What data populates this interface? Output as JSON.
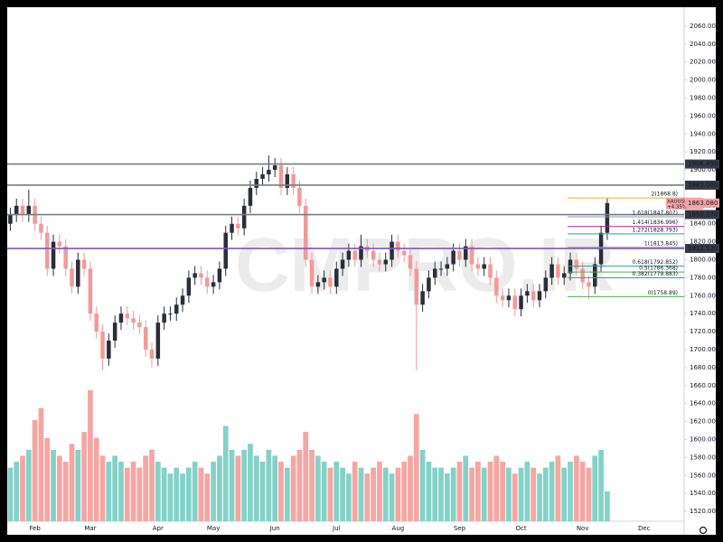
{
  "chart_data": {
    "type": "candlestick",
    "watermark": "CMPRO.IR",
    "categories": [
      null,
      null,
      null,
      null,
      "Feb",
      null,
      null,
      null,
      null,
      null,
      null,
      null,
      null,
      "Mar",
      null,
      null,
      null,
      null,
      null,
      null,
      null,
      null,
      null,
      null,
      "Apr",
      null,
      null,
      null,
      null,
      null,
      null,
      null,
      null,
      "May",
      null,
      null,
      null,
      null,
      null,
      null,
      null,
      null,
      null,
      "Jun",
      null,
      null,
      null,
      null,
      null,
      null,
      null,
      null,
      null,
      "Jul",
      null,
      null,
      null,
      null,
      null,
      null,
      null,
      null,
      null,
      "Aug",
      null,
      null,
      null,
      null,
      null,
      null,
      null,
      null,
      null,
      "Sep",
      null,
      null,
      null,
      null,
      null,
      null,
      null,
      null,
      null,
      "Oct",
      null,
      null,
      null,
      null,
      null,
      null,
      null,
      null,
      null,
      "Nov",
      null,
      null,
      null,
      null,
      null,
      null,
      null,
      null,
      null,
      "Dec",
      null,
      null,
      null,
      null,
      null,
      null
    ],
    "open": [
      1840,
      1850,
      1860,
      1850,
      1860,
      1840,
      1830,
      1790,
      1820,
      1815,
      1790,
      1770,
      1800,
      1790,
      1740,
      1720,
      1690,
      1710,
      1730,
      1740,
      1735,
      1730,
      1725,
      1700,
      1690,
      1730,
      1740,
      1740,
      1750,
      1760,
      1780,
      1785,
      1780,
      1770,
      1775,
      1790,
      1830,
      1840,
      1835,
      1860,
      1880,
      1890,
      1895,
      1900,
      1905,
      1880,
      1895,
      1880,
      1860,
      1800,
      1770,
      1775,
      1780,
      1770,
      1790,
      1800,
      1810,
      1800,
      1815,
      1810,
      1800,
      1795,
      1800,
      1820,
      1810,
      1805,
      1790,
      1750,
      1765,
      1780,
      1790,
      1790,
      1795,
      1810,
      1800,
      1815,
      1795,
      1790,
      1795,
      1780,
      1760,
      1755,
      1760,
      1745,
      1760,
      1765,
      1755,
      1765,
      1780,
      1795,
      1780,
      1785,
      1800,
      1790,
      1775,
      1770,
      1795,
      1830,
      null,
      null,
      null,
      null,
      null,
      null,
      null,
      null,
      null,
      null,
      null,
      null
    ],
    "high": [
      1858,
      1868,
      1868,
      1878,
      1868,
      1848,
      1838,
      1828,
      1828,
      1823,
      1798,
      1808,
      1808,
      1798,
      1748,
      1728,
      1718,
      1738,
      1748,
      1748,
      1743,
      1738,
      1733,
      1708,
      1738,
      1748,
      1748,
      1758,
      1768,
      1788,
      1793,
      1793,
      1788,
      1783,
      1798,
      1838,
      1848,
      1848,
      1868,
      1888,
      1898,
      1903,
      1916,
      1913,
      1913,
      1903,
      1903,
      1888,
      1868,
      1808,
      1783,
      1788,
      1788,
      1798,
      1808,
      1818,
      1818,
      1828,
      1823,
      1818,
      1808,
      1808,
      1828,
      1828,
      1818,
      1813,
      1798,
      1773,
      1788,
      1798,
      1798,
      1803,
      1818,
      1818,
      1823,
      1823,
      1803,
      1803,
      1803,
      1788,
      1768,
      1768,
      1768,
      1768,
      1773,
      1773,
      1773,
      1788,
      1803,
      1803,
      1793,
      1808,
      1808,
      1798,
      1783,
      1803,
      1838,
      1868,
      null,
      null,
      null,
      null,
      null,
      null,
      null,
      null,
      null,
      null,
      null,
      null
    ],
    "low": [
      1832,
      1842,
      1842,
      1842,
      1832,
      1822,
      1782,
      1782,
      1807,
      1782,
      1762,
      1762,
      1782,
      1732,
      1712,
      1677,
      1682,
      1702,
      1722,
      1727,
      1722,
      1717,
      1692,
      1680,
      1682,
      1722,
      1732,
      1732,
      1742,
      1752,
      1772,
      1772,
      1762,
      1762,
      1767,
      1782,
      1822,
      1827,
      1827,
      1852,
      1872,
      1882,
      1887,
      1892,
      1872,
      1872,
      1872,
      1852,
      1792,
      1762,
      1762,
      1767,
      1762,
      1762,
      1782,
      1792,
      1792,
      1792,
      1802,
      1792,
      1787,
      1787,
      1792,
      1802,
      1797,
      1782,
      1677,
      1742,
      1757,
      1772,
      1782,
      1782,
      1787,
      1792,
      1792,
      1787,
      1782,
      1782,
      1772,
      1752,
      1747,
      1747,
      1737,
      1737,
      1752,
      1747,
      1747,
      1757,
      1772,
      1772,
      1772,
      1777,
      1782,
      1767,
      1756,
      1762,
      1787,
      1822,
      null,
      null,
      null,
      null,
      null,
      null,
      null,
      null,
      null,
      null,
      null,
      null
    ],
    "close": [
      1850,
      1860,
      1850,
      1860,
      1840,
      1830,
      1790,
      1820,
      1815,
      1790,
      1770,
      1800,
      1790,
      1740,
      1720,
      1690,
      1710,
      1730,
      1740,
      1735,
      1730,
      1725,
      1700,
      1690,
      1730,
      1740,
      1740,
      1750,
      1760,
      1780,
      1785,
      1780,
      1770,
      1775,
      1790,
      1830,
      1840,
      1835,
      1860,
      1880,
      1890,
      1895,
      1900,
      1905,
      1880,
      1895,
      1880,
      1860,
      1800,
      1770,
      1775,
      1780,
      1770,
      1790,
      1800,
      1810,
      1800,
      1815,
      1810,
      1800,
      1795,
      1800,
      1820,
      1810,
      1805,
      1790,
      1750,
      1765,
      1780,
      1790,
      1790,
      1795,
      1810,
      1800,
      1815,
      1795,
      1790,
      1795,
      1780,
      1760,
      1755,
      1760,
      1745,
      1760,
      1765,
      1755,
      1765,
      1780,
      1795,
      1780,
      1785,
      1800,
      1790,
      1775,
      1770,
      1795,
      1830,
      1863.08,
      null,
      null,
      null,
      null,
      null,
      null,
      null,
      null,
      null,
      null,
      null,
      null
    ],
    "volume": [
      45,
      50,
      55,
      60,
      85,
      95,
      70,
      60,
      55,
      50,
      65,
      60,
      75,
      110,
      70,
      55,
      50,
      55,
      50,
      45,
      50,
      45,
      55,
      60,
      50,
      45,
      40,
      45,
      40,
      45,
      50,
      45,
      40,
      50,
      55,
      80,
      60,
      55,
      60,
      65,
      55,
      50,
      60,
      55,
      50,
      45,
      55,
      60,
      75,
      60,
      55,
      50,
      45,
      50,
      45,
      40,
      50,
      45,
      40,
      45,
      50,
      45,
      40,
      45,
      50,
      55,
      90,
      60,
      50,
      45,
      45,
      40,
      45,
      50,
      55,
      45,
      50,
      45,
      50,
      55,
      50,
      45,
      40,
      45,
      50,
      45,
      40,
      45,
      50,
      55,
      45,
      50,
      55,
      50,
      45,
      55,
      60,
      25,
      null,
      null,
      null,
      null,
      null,
      null,
      null,
      null,
      null,
      null,
      null,
      null
    ],
    "up_color": "#2a2e39",
    "down_color": "#f19a9a",
    "volume_up_color": "#84d2c7",
    "volume_down_color": "#f5a6a2",
    "ylim": [
      1509,
      2081
    ],
    "yticks": [
      {
        "value": 1520,
        "label": "1520.000"
      },
      {
        "value": 1540,
        "label": "1540.000"
      },
      {
        "value": 1560,
        "label": "1560.000"
      },
      {
        "value": 1580,
        "label": "1580.000"
      },
      {
        "value": 1600,
        "label": "1600.000"
      },
      {
        "value": 1620,
        "label": "1620.000"
      },
      {
        "value": 1640,
        "label": "1640.000"
      },
      {
        "value": 1660,
        "label": "1660.000"
      },
      {
        "value": 1680,
        "label": "1680.000"
      },
      {
        "value": 1700,
        "label": "1700.000"
      },
      {
        "value": 1720,
        "label": "1720.000"
      },
      {
        "value": 1740,
        "label": "1740.000"
      },
      {
        "value": 1760,
        "label": "1760.000"
      },
      {
        "value": 1780,
        "label": "1780.000"
      },
      {
        "value": 1800,
        "label": "1800.000"
      },
      {
        "value": 1820,
        "label": "1820.000"
      },
      {
        "value": 1840,
        "label": "1840.000"
      },
      {
        "value": 1860,
        "label": "1860.000"
      },
      {
        "value": 1880,
        "label": "1880.000"
      },
      {
        "value": 1900,
        "label": "1900.000"
      },
      {
        "value": 1920,
        "label": "1920.000"
      },
      {
        "value": 1940,
        "label": "1940.000"
      },
      {
        "value": 1960,
        "label": "1960.000"
      },
      {
        "value": 1980,
        "label": "1980.000"
      },
      {
        "value": 2000,
        "label": "2000.000"
      },
      {
        "value": 2020,
        "label": "2020.000"
      },
      {
        "value": 2040,
        "label": "2040.000"
      },
      {
        "value": 2060,
        "label": "2060.000"
      }
    ],
    "levels": [
      {
        "value": 1906.49,
        "label": "1906.490",
        "color": "#787b86"
      },
      {
        "value": 1883,
        "label": "1883.000",
        "color": "#787b86"
      },
      {
        "value": 1850.27,
        "label": "1850.270",
        "color": "#787b86"
      },
      {
        "value": 1812.53,
        "label": "1812.530",
        "color": "#7e57c2"
      }
    ],
    "fib": [
      {
        "value": 1868.8,
        "label": "2(1868.8)",
        "color": "#f6a935"
      },
      {
        "value": 1847.807,
        "label": "1.618(1847.807)",
        "color": "#9598a1"
      },
      {
        "value": 1836.996,
        "label": "1.414(1836.996)",
        "color": "#9c27b0"
      },
      {
        "value": 1828.793,
        "label": "1.272(1828.793)",
        "color": "#26a69a"
      },
      {
        "value": 1813.845,
        "label": "1(1813.845)",
        "color": "#9598a1"
      },
      {
        "value": 1792.852,
        "label": "0.618(1792.852)",
        "color": "#26a69a"
      },
      {
        "value": 1786.368,
        "label": "0.5(1786.368)",
        "color": "#4caf50"
      },
      {
        "value": 1779.883,
        "label": "0.382(1779.883)",
        "color": "#26a69a"
      },
      {
        "value": 1758.89,
        "label": "0(1758.89)",
        "color": "#4caf50"
      }
    ],
    "last_price": {
      "symbol": "XAUUSD",
      "value": 1863.08,
      "label": "1863.080",
      "change": "+4.35%",
      "color": "#f5a3a3"
    }
  }
}
